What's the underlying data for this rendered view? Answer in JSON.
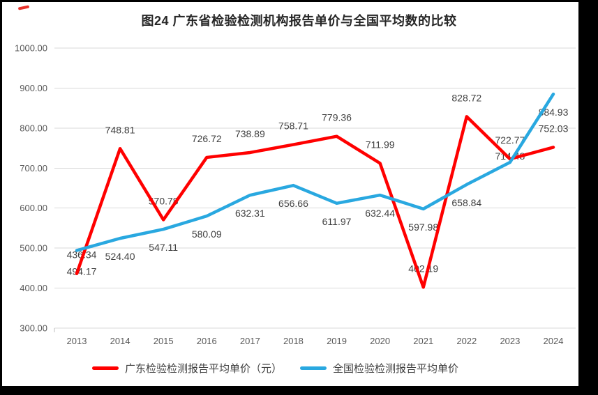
{
  "chart_data": {
    "type": "line",
    "title": "图24  广东省检验检测机构报告单价与全国平均数的比较",
    "categories": [
      "2013",
      "2014",
      "2015",
      "2016",
      "2017",
      "2018",
      "2019",
      "2020",
      "2021",
      "2022",
      "2023",
      "2024"
    ],
    "series": [
      {
        "name": "广东检验检测报告平均单价（元）",
        "color": "#FF0000",
        "values": [
          436.34,
          748.81,
          570.78,
          726.72,
          738.89,
          758.71,
          779.36,
          711.99,
          402.19,
          828.72,
          722.77,
          752.03
        ]
      },
      {
        "name": "全国检验检测报告平均单价",
        "color": "#29A8E0",
        "values": [
          494.17,
          524.4,
          547.11,
          580.09,
          632.31,
          656.66,
          611.97,
          632.44,
          597.98,
          658.84,
          714.48,
          884.93
        ]
      }
    ],
    "xlabel": "",
    "ylabel": "",
    "ylim": [
      300,
      1000
    ],
    "ytick_step": 100,
    "ytick_decimals": 2,
    "grid": "horizontal",
    "legend_position": "bottom",
    "data_labels": true,
    "axis_text_color": "#595959",
    "data_label_color": "#404040",
    "gridline_color": "#D9D9D9"
  }
}
